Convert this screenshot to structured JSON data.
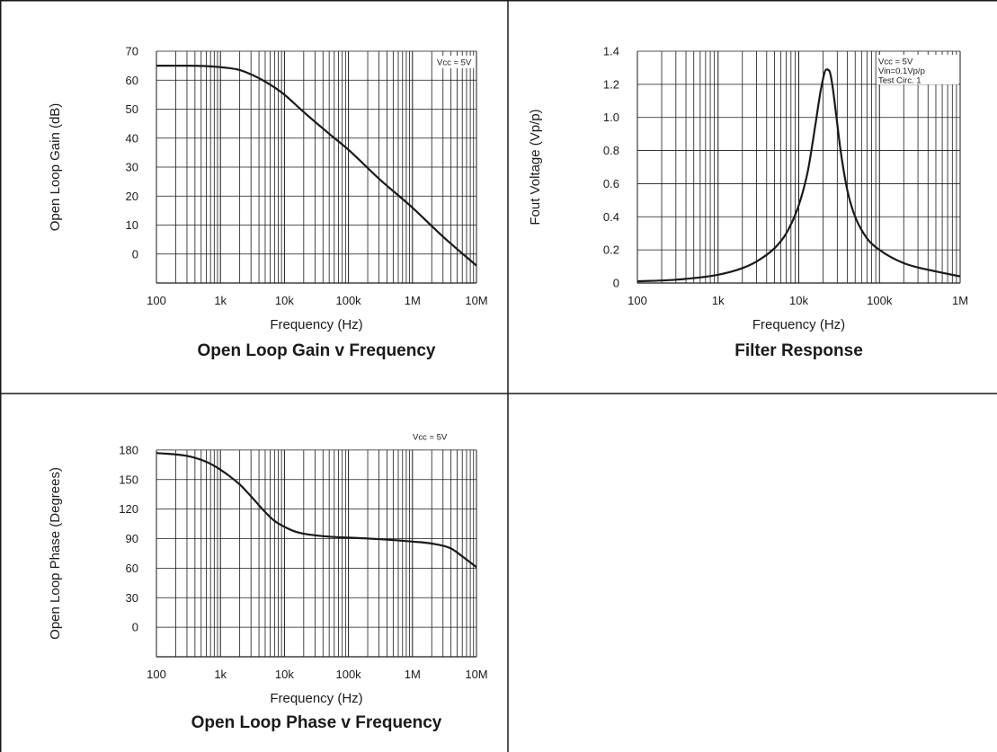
{
  "chart_data": [
    {
      "type": "line",
      "title": "Open Loop Gain v Frequency",
      "xlabel": "Frequency (Hz)",
      "ylabel": "Open Loop Gain (dB)",
      "x_scale": "log",
      "xlim": [
        100,
        10000000
      ],
      "ylim": [
        -10,
        70
      ],
      "x_ticks": [
        100,
        1000,
        10000,
        100000,
        1000000,
        10000000
      ],
      "x_tick_labels": [
        "100",
        "1k",
        "10k",
        "100k",
        "1M",
        "10M"
      ],
      "y_ticks": [
        0,
        10,
        20,
        30,
        40,
        50,
        60,
        70
      ],
      "y_tick_labels": [
        "0",
        "10",
        "20",
        "30",
        "40",
        "50",
        "60",
        "70"
      ],
      "grid": true,
      "annotations": [
        "Vcc = 5V"
      ],
      "series": [
        {
          "x": [
            100,
            300,
            1000,
            2000,
            3000,
            5000,
            7000,
            10000,
            20000,
            50000,
            100000,
            300000,
            1000000,
            3000000,
            10000000
          ],
          "y": [
            65,
            65,
            64.5,
            63.5,
            62,
            59.5,
            57.5,
            55,
            49,
            41.5,
            36,
            26,
            16,
            6,
            -4
          ]
        }
      ]
    },
    {
      "type": "line",
      "title": "Filter Response",
      "xlabel": "Frequency (Hz)",
      "ylabel": "Fout Voltage (Vp/p)",
      "x_scale": "log",
      "xlim": [
        100,
        1000000
      ],
      "ylim": [
        0,
        1.4
      ],
      "x_ticks": [
        100,
        1000,
        10000,
        100000,
        1000000
      ],
      "x_tick_labels": [
        "100",
        "1k",
        "10k",
        "100k",
        "1M"
      ],
      "y_ticks": [
        0,
        0.2,
        0.4,
        0.6,
        0.8,
        1.0,
        1.2,
        1.4
      ],
      "y_tick_labels": [
        "0",
        "0.2",
        "0.4",
        "0.6",
        "0.8",
        "1.0",
        "1.2",
        "1.4"
      ],
      "grid": true,
      "annotations": [
        "Vcc = 5V",
        "Vin=0.1Vp/p",
        "Test Circ. 1"
      ],
      "series": [
        {
          "x": [
            100,
            300,
            1000,
            2000,
            3000,
            5000,
            7000,
            10000,
            13000,
            16000,
            19000,
            22000,
            24000,
            26000,
            29000,
            33000,
            40000,
            50000,
            70000,
            100000,
            200000,
            500000,
            1000000
          ],
          "y": [
            0.01,
            0.02,
            0.05,
            0.09,
            0.13,
            0.21,
            0.3,
            0.47,
            0.68,
            0.95,
            1.18,
            1.29,
            1.28,
            1.2,
            1.02,
            0.8,
            0.56,
            0.4,
            0.27,
            0.2,
            0.12,
            0.07,
            0.04
          ]
        }
      ]
    },
    {
      "type": "line",
      "title": "Open Loop Phase v Frequency",
      "xlabel": "Frequency (Hz)",
      "ylabel": "Open Loop Phase (Degrees)",
      "x_scale": "log",
      "xlim": [
        100,
        10000000
      ],
      "ylim": [
        -30,
        210
      ],
      "x_ticks": [
        100,
        1000,
        10000,
        100000,
        1000000,
        10000000
      ],
      "x_tick_labels": [
        "100",
        "1k",
        "10k",
        "100k",
        "1M",
        "10M"
      ],
      "y_ticks": [
        0,
        30,
        60,
        90,
        120,
        150,
        180
      ],
      "y_tick_labels": [
        "0",
        "30",
        "60",
        "90",
        "120",
        "150",
        "180"
      ],
      "grid": true,
      "annotations": [
        "Vcc = 5V"
      ],
      "series": [
        {
          "x": [
            100,
            300,
            600,
            1000,
            2000,
            3000,
            5000,
            7000,
            10000,
            15000,
            20000,
            50000,
            100000,
            300000,
            1000000,
            2000000,
            4000000,
            6000000,
            10000000
          ],
          "y": [
            177,
            174,
            168,
            160,
            145,
            133,
            117,
            108,
            102,
            97,
            95,
            92,
            91,
            89.5,
            87,
            85,
            80,
            72,
            61
          ]
        }
      ]
    }
  ]
}
